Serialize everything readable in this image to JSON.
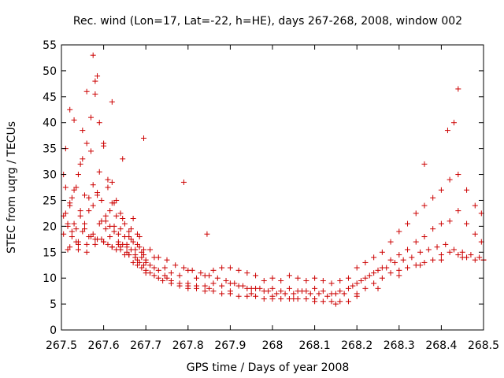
{
  "chart_data": {
    "type": "scatter",
    "title": "Rec. wind (Lon=17, Lat=-22, h=HE), days 267-268, 2008, window 002",
    "xlabel": "GPS time / Days of year 2008",
    "ylabel": "STEC from uqrg / TECUs",
    "xlim": [
      267.5,
      268.5
    ],
    "ylim": [
      0,
      55
    ],
    "xticks": [
      267.5,
      267.6,
      267.7,
      267.8,
      267.9,
      268.0,
      268.1,
      268.2,
      268.3,
      268.4,
      268.5
    ],
    "xtick_labels": [
      "267.5",
      "267.6",
      "267.7",
      "267.8",
      "267.9",
      "268",
      "268.1",
      "268.2",
      "268.3",
      "268.4",
      "268.5"
    ],
    "yticks": [
      0,
      5,
      10,
      15,
      20,
      25,
      30,
      35,
      40,
      45,
      50,
      55
    ],
    "ytick_labels": [
      "0",
      "5",
      "10",
      "15",
      "20",
      "25",
      "30",
      "35",
      "40",
      "45",
      "50",
      "55"
    ],
    "grid": false,
    "marker": "plus",
    "marker_color": "#cc0000",
    "series": [
      {
        "name": "STEC",
        "x": [
          267.505,
          267.51,
          267.515,
          267.52,
          267.525,
          267.53,
          267.535,
          267.54,
          267.545,
          267.55,
          267.555,
          267.56,
          267.565,
          267.57,
          267.575,
          267.58,
          267.585,
          267.59,
          267.595,
          267.6,
          267.605,
          267.61,
          267.615,
          267.62,
          267.625,
          267.63,
          267.635,
          267.64,
          267.645,
          267.65,
          267.655,
          267.66,
          267.665,
          267.67,
          267.675,
          267.68,
          267.685,
          267.69,
          267.695,
          267.7,
          267.71,
          267.72,
          267.73,
          267.745,
          267.76,
          267.78,
          267.8,
          267.82,
          267.84,
          267.86,
          267.88,
          267.9,
          267.92,
          267.94,
          267.96,
          267.98,
          268.0,
          268.02,
          268.04,
          268.06,
          268.08,
          268.1,
          268.12,
          268.14,
          268.16,
          268.18,
          268.2,
          268.22,
          268.24,
          268.26,
          268.28,
          268.3,
          268.32,
          268.34,
          268.36,
          268.38,
          268.4,
          268.42,
          268.44,
          268.46,
          268.48,
          268.495,
          267.505,
          267.51,
          267.515,
          267.52,
          267.525,
          267.53,
          267.535,
          267.54,
          267.545,
          267.55,
          267.555,
          267.56,
          267.565,
          267.57,
          267.575,
          267.58,
          267.585,
          267.59,
          267.595,
          267.6,
          267.605,
          267.61,
          267.615,
          267.62,
          267.625,
          267.63,
          267.635,
          267.64,
          267.645,
          267.65,
          267.655,
          267.66,
          267.665,
          267.67,
          267.675,
          267.68,
          267.685,
          267.69,
          267.695,
          267.7,
          267.71,
          267.72,
          267.73,
          267.745,
          267.76,
          267.78,
          267.8,
          267.82,
          267.84,
          267.86,
          267.88,
          267.9,
          267.92,
          267.94,
          267.96,
          267.98,
          268.0,
          268.02,
          268.04,
          268.06,
          268.08,
          268.1,
          268.12,
          268.14,
          268.16,
          268.18,
          268.2,
          268.22,
          268.24,
          268.26,
          268.28,
          268.3,
          268.32,
          268.34,
          268.36,
          268.38,
          268.4,
          268.42,
          268.44,
          268.46,
          268.48,
          268.495,
          267.505,
          267.515,
          267.525,
          267.535,
          267.545,
          267.555,
          267.565,
          267.575,
          267.585,
          267.595,
          267.605,
          267.615,
          267.625,
          267.635,
          267.645,
          267.655,
          267.665,
          267.675,
          267.685,
          267.695,
          267.71,
          267.73,
          267.75,
          267.77,
          267.79,
          267.81,
          267.83,
          267.85,
          267.87,
          267.89,
          267.91,
          267.93,
          267.95,
          267.97,
          267.99,
          268.01,
          268.03,
          268.05,
          268.07,
          268.09,
          268.11,
          268.13,
          268.15,
          268.17,
          268.19,
          268.21,
          268.23,
          268.25,
          268.27,
          268.29,
          268.31,
          268.33,
          268.35,
          268.37,
          268.39,
          268.41,
          268.43,
          268.45,
          268.47,
          268.49,
          267.51,
          267.52,
          267.53,
          267.54,
          267.55,
          267.56,
          267.57,
          267.58,
          267.59,
          267.6,
          267.61,
          267.62,
          267.63,
          267.64,
          267.65,
          267.66,
          267.67,
          267.68,
          267.69,
          267.7,
          267.72,
          267.74,
          267.76,
          267.78,
          267.8,
          267.82,
          267.84,
          267.86,
          267.88,
          267.9,
          267.92,
          267.94,
          267.96,
          267.98,
          268.0,
          268.02,
          268.04,
          268.06,
          268.08,
          268.1,
          268.12,
          268.14,
          268.16,
          268.18,
          268.2,
          268.22,
          268.24,
          268.26,
          268.28,
          268.3,
          268.32,
          268.34,
          268.36,
          268.38,
          268.4,
          268.42,
          268.44,
          268.46,
          268.48,
          268.5,
          267.52,
          267.54,
          267.56,
          267.58,
          267.6,
          267.62,
          267.64,
          267.66,
          267.68,
          267.7,
          267.75,
          267.8,
          267.85,
          267.9,
          267.95,
          268.0,
          268.05,
          268.1,
          268.15,
          268.2,
          268.25,
          268.3,
          268.35,
          268.4,
          268.45,
          268.5,
          267.575,
          267.62,
          267.585,
          267.695,
          267.79,
          267.845,
          268.36,
          268.44,
          268.415,
          268.43
        ],
        "y": [
          22.0,
          35.0,
          15.5,
          42.5,
          19.0,
          40.5,
          27.5,
          16.5,
          32.0,
          38.5,
          26.0,
          46.0,
          18.0,
          34.5,
          24.0,
          48.0,
          17.5,
          30.5,
          21.0,
          35.5,
          19.5,
          29.0,
          23.0,
          28.5,
          20.0,
          25.0,
          17.0,
          22.5,
          33.0,
          20.5,
          15.0,
          19.0,
          17.5,
          21.5,
          14.5,
          18.5,
          16.0,
          14.0,
          15.5,
          13.5,
          12.5,
          14.0,
          11.5,
          12.0,
          11.0,
          10.5,
          11.5,
          10.0,
          10.5,
          11.5,
          12.0,
          12.0,
          11.5,
          11.0,
          10.5,
          9.5,
          10.0,
          9.5,
          10.5,
          10.0,
          9.5,
          10.0,
          9.5,
          9.0,
          9.5,
          10.0,
          12.0,
          13.0,
          14.0,
          15.0,
          17.0,
          19.0,
          20.5,
          22.5,
          24.0,
          25.5,
          27.0,
          29.0,
          30.0,
          27.0,
          24.0,
          22.5,
          18.5,
          22.5,
          20.0,
          24.5,
          18.0,
          27.0,
          19.5,
          30.0,
          23.0,
          33.0,
          20.5,
          36.0,
          25.5,
          41.0,
          28.0,
          45.5,
          26.5,
          40.0,
          25.0,
          36.0,
          21.0,
          27.5,
          20.0,
          24.5,
          19.0,
          22.0,
          18.5,
          19.5,
          16.5,
          18.0,
          16.5,
          18.0,
          15.5,
          17.0,
          14.0,
          16.5,
          13.0,
          15.0,
          12.5,
          13.0,
          11.0,
          12.0,
          10.0,
          10.5,
          9.5,
          9.0,
          9.0,
          8.5,
          8.5,
          9.0,
          8.5,
          9.0,
          8.5,
          8.0,
          8.0,
          7.5,
          8.0,
          7.5,
          8.0,
          7.5,
          7.5,
          8.0,
          7.5,
          7.0,
          7.5,
          8.0,
          9.0,
          10.0,
          11.0,
          12.0,
          13.5,
          14.5,
          15.5,
          17.0,
          18.0,
          19.5,
          20.5,
          21.0,
          23.0,
          20.5,
          18.5,
          17.0,
          30.0,
          20.5,
          25.5,
          17.0,
          22.0,
          19.5,
          23.0,
          18.5,
          26.0,
          17.5,
          22.0,
          18.0,
          24.5,
          16.5,
          21.5,
          16.0,
          19.5,
          15.5,
          18.0,
          14.5,
          15.5,
          14.0,
          13.5,
          12.5,
          12.0,
          11.5,
          11.0,
          10.5,
          10.0,
          9.5,
          9.0,
          8.5,
          8.0,
          8.0,
          7.5,
          7.0,
          7.0,
          7.0,
          7.5,
          7.0,
          7.0,
          6.5,
          7.0,
          7.0,
          8.5,
          9.5,
          10.5,
          11.5,
          12.0,
          13.0,
          13.5,
          14.0,
          15.0,
          15.5,
          16.0,
          16.5,
          15.5,
          15.0,
          14.5,
          14.0,
          27.5,
          24.0,
          20.5,
          17.0,
          19.0,
          16.5,
          18.0,
          17.5,
          20.5,
          17.0,
          16.5,
          16.0,
          15.5,
          16.0,
          14.5,
          14.5,
          13.0,
          12.5,
          12.0,
          11.0,
          10.5,
          9.5,
          9.0,
          8.5,
          8.0,
          8.0,
          7.5,
          7.5,
          7.0,
          7.0,
          6.5,
          6.5,
          6.5,
          6.0,
          6.0,
          6.0,
          6.0,
          6.0,
          6.0,
          6.0,
          5.5,
          5.5,
          5.5,
          5.5,
          7.0,
          8.0,
          9.0,
          10.0,
          11.0,
          11.5,
          12.0,
          12.5,
          13.0,
          13.5,
          14.5,
          15.0,
          14.5,
          14.0,
          13.5,
          13.5,
          16.0,
          15.5,
          15.0,
          16.5,
          17.0,
          16.0,
          15.5,
          14.5,
          13.5,
          11.5,
          10.0,
          8.5,
          8.0,
          7.5,
          7.0,
          6.5,
          6.0,
          5.5,
          5.0,
          6.5,
          8.0,
          10.5,
          12.5,
          13.5,
          14.0,
          13.5,
          53.0,
          44.0,
          49.0,
          37.0,
          28.5,
          18.5,
          32.0,
          46.5,
          38.5,
          40.0
        ]
      }
    ]
  }
}
